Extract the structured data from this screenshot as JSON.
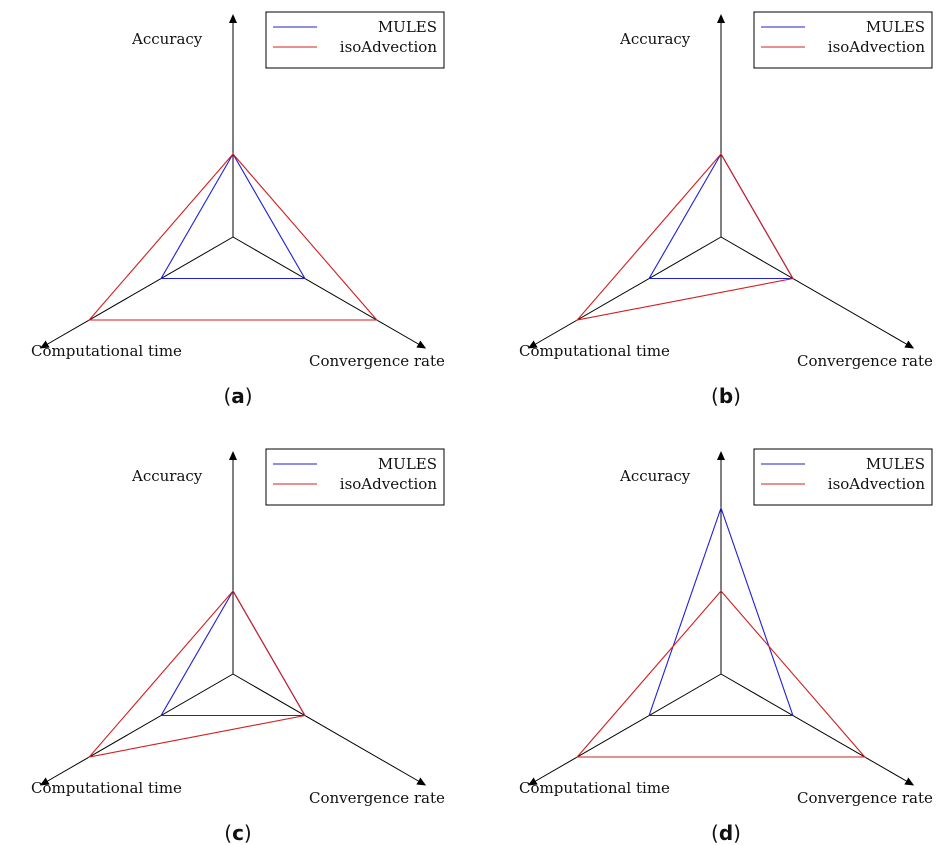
{
  "colors": {
    "axis": "#000000",
    "mules": "#1f1fd6",
    "iso": "#d11f1f"
  },
  "chart_data": [
    {
      "type": "radar",
      "caption": "a",
      "axes": [
        "Accuracy",
        "Computational time",
        "Convergence rate"
      ],
      "series": [
        {
          "name": "MULES",
          "values": [
            1.0,
            1.0,
            1.0
          ]
        },
        {
          "name": "isoAdvection",
          "values": [
            1.0,
            2.0,
            2.0
          ]
        }
      ],
      "legend": "top-right"
    },
    {
      "type": "radar",
      "caption": "b",
      "axes": [
        "Accuracy",
        "Computational time",
        "Convergence rate"
      ],
      "series": [
        {
          "name": "MULES",
          "values": [
            1.0,
            1.0,
            1.0
          ]
        },
        {
          "name": "isoAdvection",
          "values": [
            1.0,
            2.0,
            1.0
          ]
        }
      ],
      "legend": "top-right"
    },
    {
      "type": "radar",
      "caption": "c",
      "axes": [
        "Accuracy",
        "Computational time",
        "Convergence rate"
      ],
      "series": [
        {
          "name": "MULES",
          "values": [
            1.0,
            1.0,
            1.0
          ]
        },
        {
          "name": "isoAdvection",
          "values": [
            1.0,
            2.0,
            1.0
          ]
        }
      ],
      "legend": "top-right"
    },
    {
      "type": "radar",
      "caption": "d",
      "axes": [
        "Accuracy",
        "Computational time",
        "Convergence rate"
      ],
      "series": [
        {
          "name": "MULES",
          "values": [
            2.0,
            1.0,
            1.0
          ]
        },
        {
          "name": "isoAdvection",
          "values": [
            1.0,
            2.0,
            2.0
          ]
        }
      ],
      "legend": "top-right"
    }
  ]
}
